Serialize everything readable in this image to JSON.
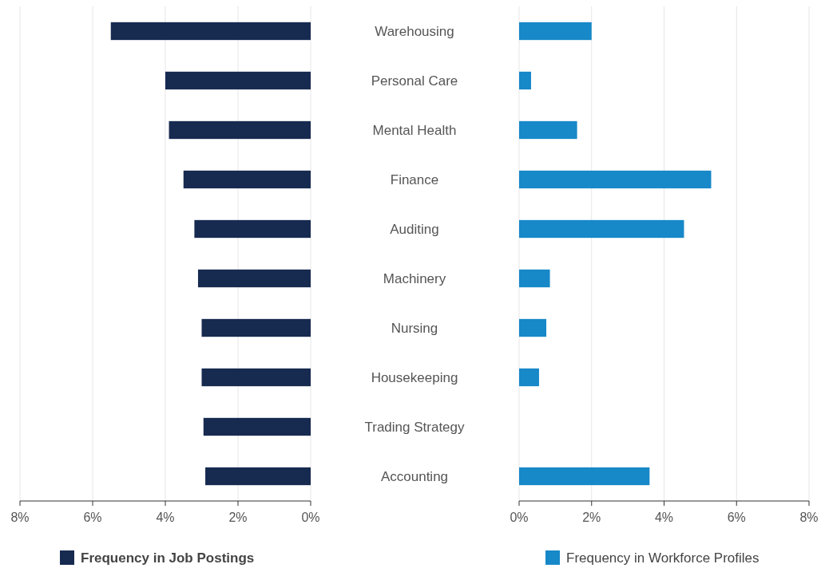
{
  "chart_data": [
    {
      "type": "bar",
      "orientation": "horizontal",
      "categories": [
        "Warehousing",
        "Personal Care",
        "Mental Health",
        "Finance",
        "Auditing",
        "Machinery",
        "Nursing",
        "Housekeeping",
        "Trading Strategy",
        "Accounting"
      ],
      "series": [
        {
          "name": "Frequency in Job Postings",
          "color": "#172a50",
          "values": [
            5.5,
            4.0,
            3.9,
            3.5,
            3.2,
            3.1,
            3.0,
            3.0,
            2.95,
            2.9
          ]
        }
      ],
      "xlim": [
        8,
        0
      ],
      "xticks": [
        {
          "value": 8,
          "label": "8%"
        },
        {
          "value": 6,
          "label": "6%"
        },
        {
          "value": 4,
          "label": "4%"
        },
        {
          "value": 2,
          "label": "2%"
        },
        {
          "value": 0,
          "label": "0%"
        }
      ],
      "grid": "x",
      "legend": "bottom"
    },
    {
      "type": "bar",
      "orientation": "horizontal",
      "categories": [
        null,
        null,
        null,
        null,
        null,
        null,
        null,
        null,
        null,
        null
      ],
      "series": [
        {
          "name": "Frequency in Workforce Profiles",
          "color": "#1788c8",
          "values": [
            2.0,
            0.33,
            1.6,
            5.3,
            4.55,
            0.85,
            0.75,
            0.55,
            null,
            3.6
          ]
        }
      ],
      "xlim": [
        0,
        8
      ],
      "xticks": [
        {
          "value": 0,
          "label": "0%"
        },
        {
          "value": 2,
          "label": "2%"
        },
        {
          "value": 4,
          "label": "4%"
        },
        {
          "value": 6,
          "label": "6%"
        },
        {
          "value": 8,
          "label": "8%"
        }
      ],
      "grid": "x",
      "legend": "bottom",
      "tick_labels": "x"
    }
  ]
}
